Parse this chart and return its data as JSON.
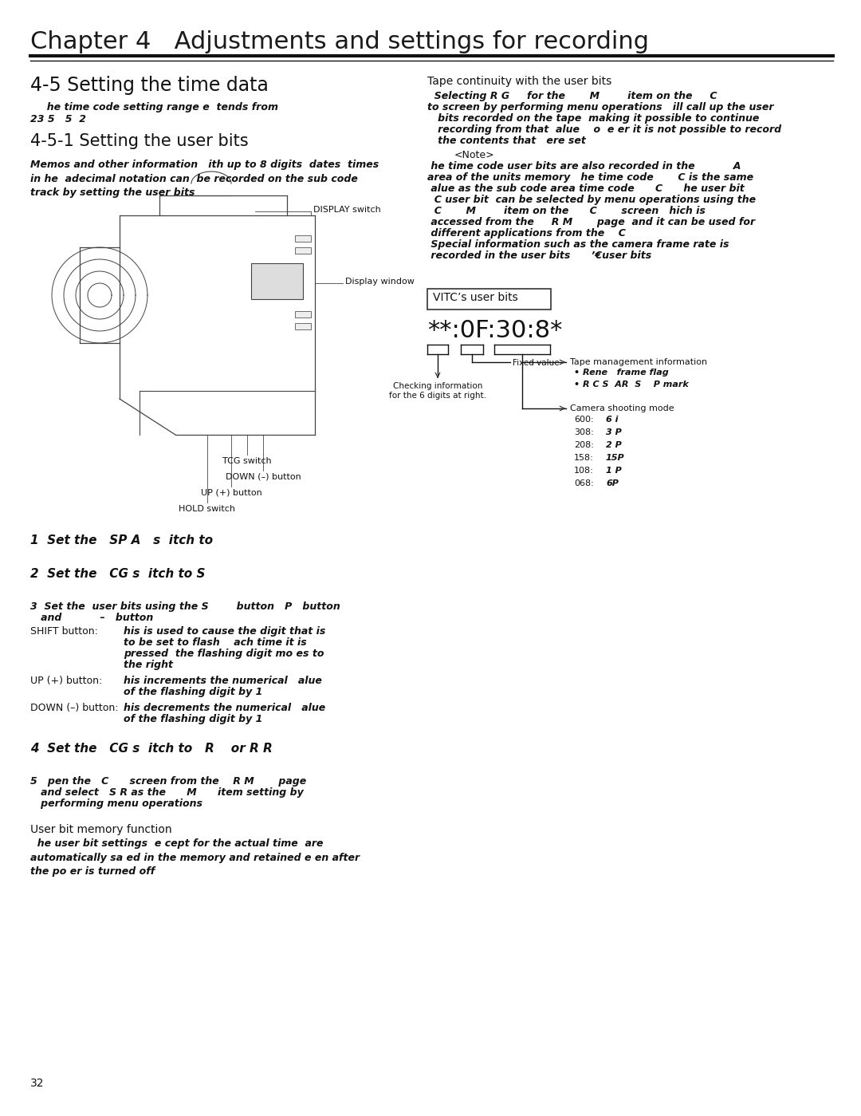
{
  "bg_color": "#ffffff",
  "title": "Chapter 4   Adjustments and settings for recording",
  "page_number": "32",
  "section1_title": "4-5 Setting the time data",
  "section1_body_line1": "  he time code setting range e  tends from",
  "section1_body_line2": "23 5   5  2",
  "section2_title": "4-5-1 Setting the user bits",
  "section2_body": "Memos and other information   ith up to 8 digits  dates  times\nin he  adecimal notation can  be recorded on the sub code\ntrack by setting the user bits",
  "right_title": "Tape continuity with the user bits",
  "right_body_lines": [
    "  Selecting R G     for the       M        item on the     C",
    "to screen by performing menu operations   ill call up the user",
    "   bits recorded on the tape  making it possible to continue",
    "   recording from that  alue    o  e er it is not possible to record",
    "   the contents that   ere set"
  ],
  "note_label": "<Note>",
  "note_lines": [
    " he time code user bits are also recorded in the           A",
    "area of the units memory   he time code       C is the same",
    " alue as the sub code area time code      C      he user bit",
    "  C user bit  can be selected by menu operations using the",
    "  C       M        item on the      C       screen   hich is",
    " accessed from the     R M       page  and it can be used for",
    " different applications from the    C",
    " Special information such as the camera frame rate is",
    " recorded in the user bits      ’€user bits"
  ],
  "vitc_label": "VITC’s user bits",
  "vitc_display": "**:0F:30:8*",
  "fixed_value_label": "Fixed value",
  "checking_info": "Checking information\nfor the 6 digits at right.",
  "tape_mgmt_label": "Tape management information",
  "tape_mgmt_items": [
    "• Rene   frame flag",
    "• R C S  AR  S    P mark"
  ],
  "camera_mode_label": "Camera shooting mode",
  "cam_numbers": [
    "600:",
    "308:",
    "208:",
    "158:",
    "108:",
    "068:"
  ],
  "cam_values": [
    "6 i",
    "3 P",
    "2 P",
    "15P",
    "1 P",
    "6P"
  ],
  "display_switch": "DISPLAY switch",
  "display_window": "Display window",
  "tcg_switch": "TCG switch",
  "down_button": "DOWN (–) button",
  "up_button": "UP (+) button",
  "hold_switch": "HOLD switch",
  "step1": "1  Set the   SP A   s  itch to",
  "step2": "2  Set the   CG s  itch to S",
  "step3a": "3  Set the  user bits using the S        button   P   button",
  "step3b": "   and           –   button",
  "shift_label": "SHIFT button:",
  "shift_text_lines": [
    "his is used to cause the digit that is",
    "to be set to flash    ach time it is",
    "pressed  the flashing digit mo es to",
    "the right"
  ],
  "up_label": "UP (+) button:",
  "up_text_lines": [
    "his increments the numerical   alue",
    "of the flashing digit by 1"
  ],
  "down_label": "DOWN (–) button:",
  "down_text_lines": [
    "his decrements the numerical   alue",
    "of the flashing digit by 1"
  ],
  "step4": "4  Set the   CG s  itch to   R    or R R",
  "step5a": "5   pen the   C      screen from the    R M       page",
  "step5b": "   and select   S R as the      M      item setting by",
  "step5c": "   performing menu operations",
  "ubm_title": "User bit memory function",
  "ubm_body": "  he user bit settings  e cept for the actual time  are\nautomatically sa ed in the memory and retained e en after\nthe po er is turned off"
}
